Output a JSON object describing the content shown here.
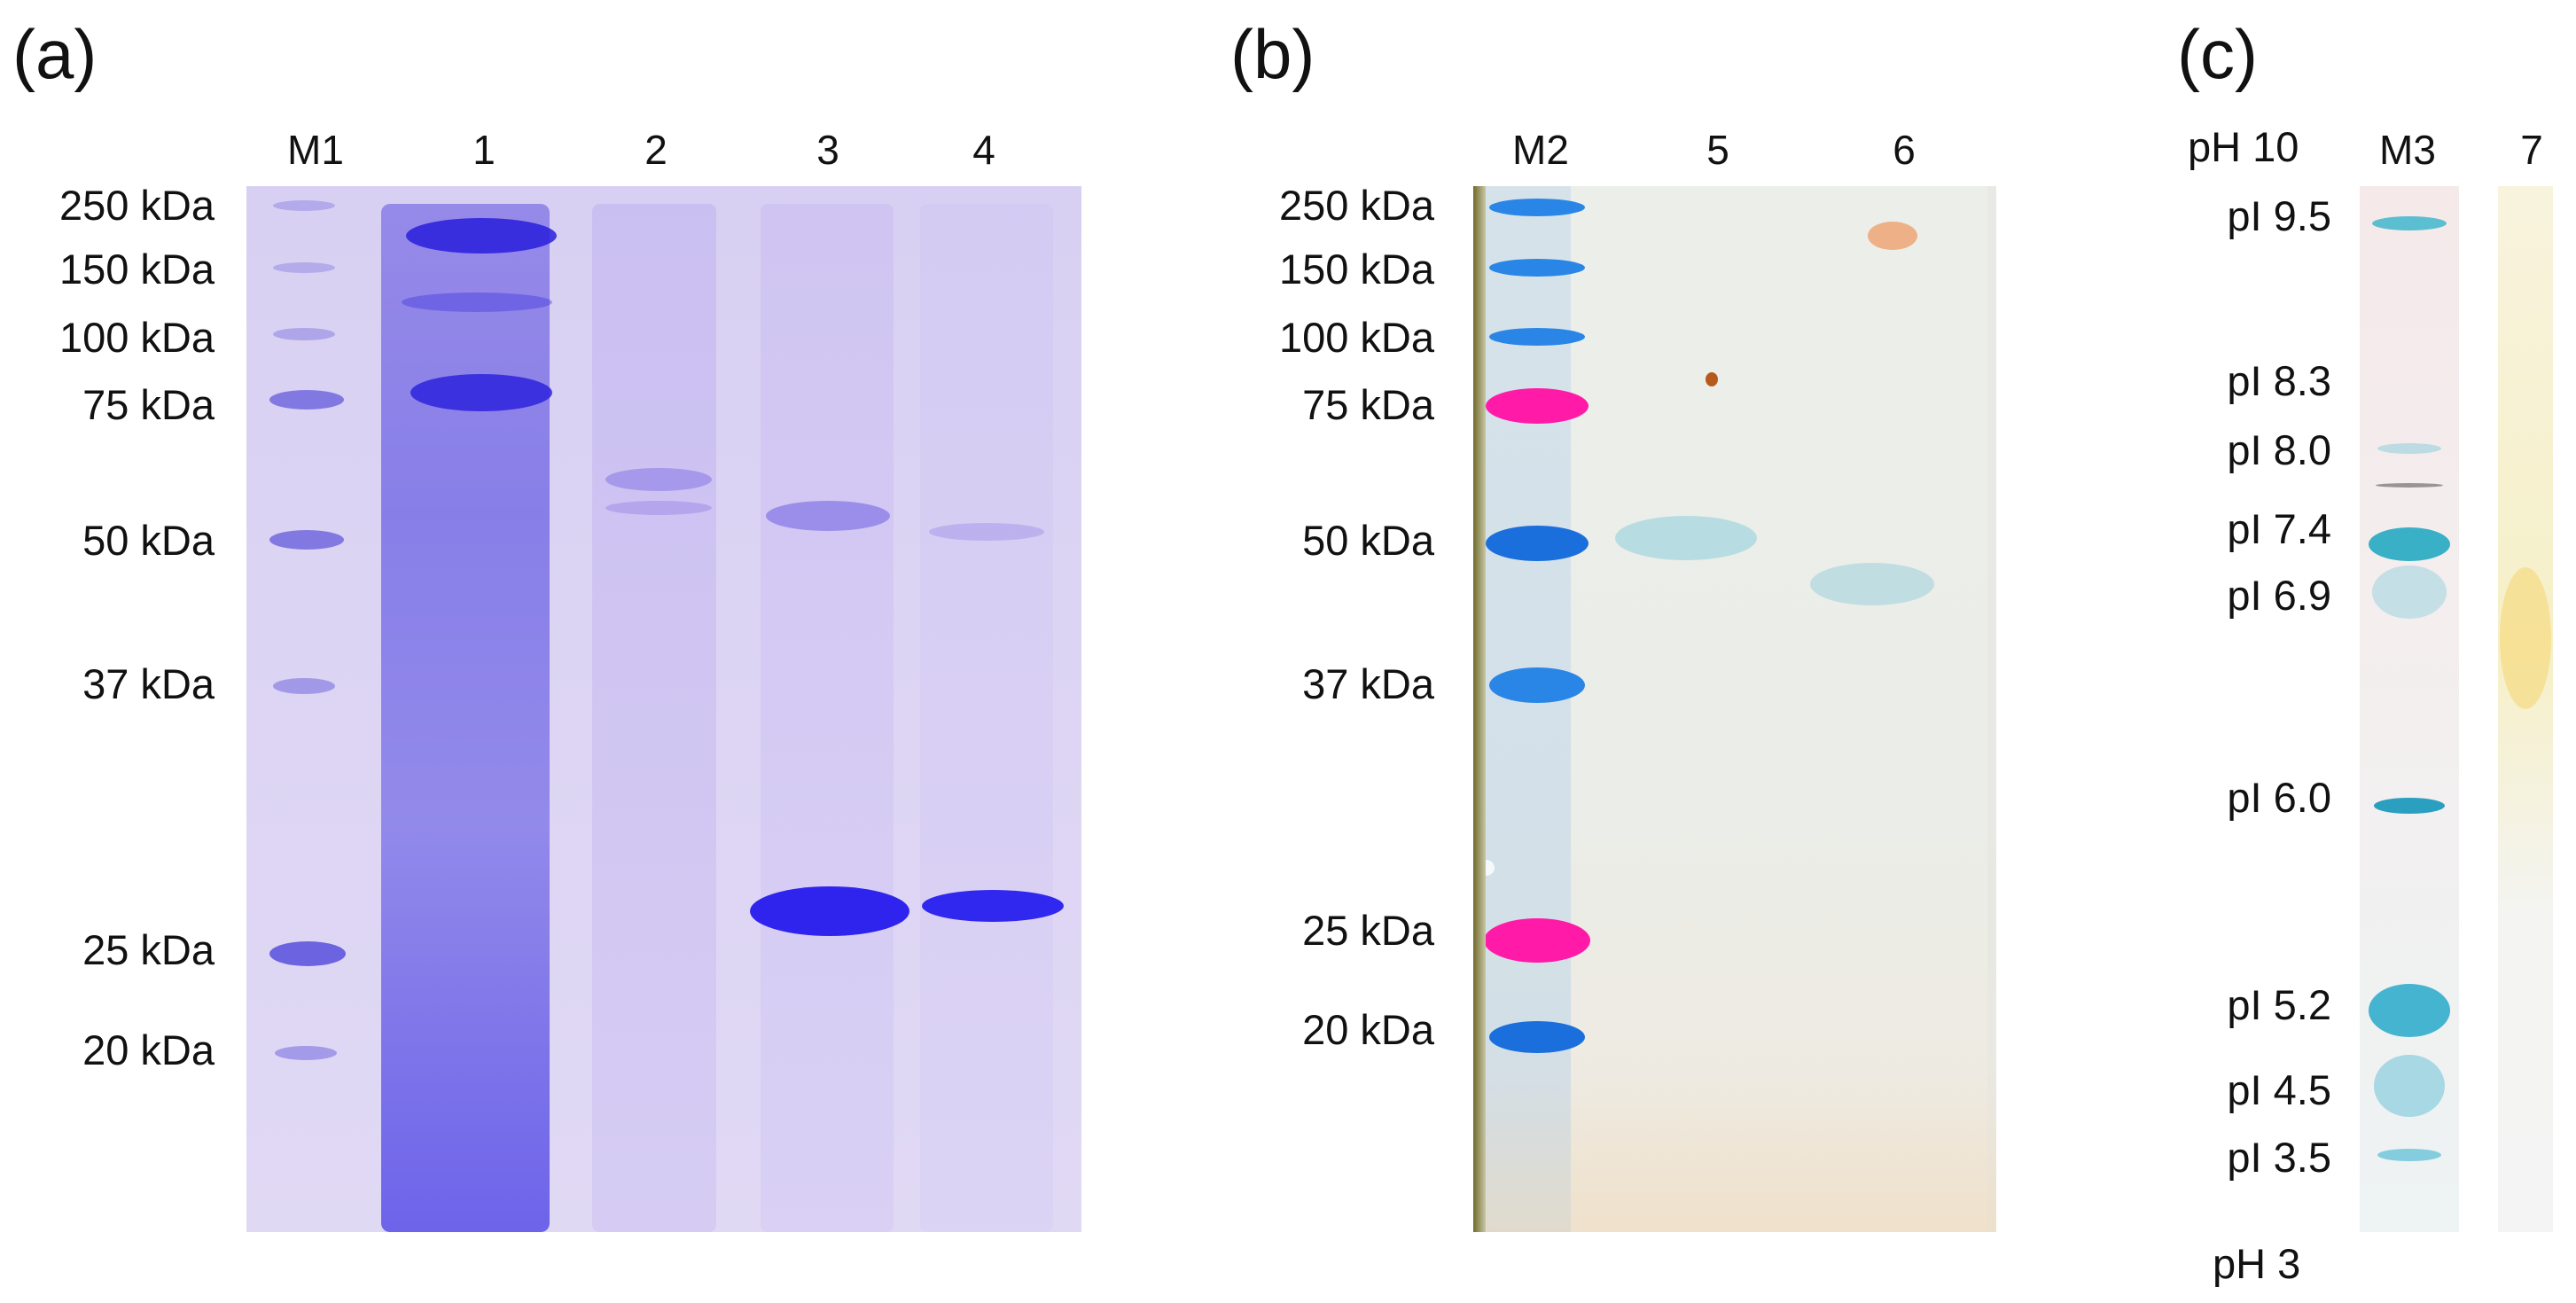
{
  "panels": {
    "a": {
      "letter": "(a)",
      "lane_labels": [
        "M1",
        "1",
        "2",
        "3",
        "4"
      ],
      "marker_labels": [
        "250 kDa",
        "150 kDa",
        "100 kDa",
        "75 kDa",
        "50 kDa",
        "37 kDa",
        "25 kDa",
        "20 kDa"
      ]
    },
    "b": {
      "letter": "(b)",
      "lane_labels": [
        "M2",
        "5",
        "6"
      ],
      "marker_labels": [
        "250 kDa",
        "150 kDa",
        "100 kDa",
        "75 kDa",
        "50 kDa",
        "37 kDa",
        "25 kDa",
        "20 kDa"
      ]
    },
    "c": {
      "letter": "(c)",
      "top_label": "pH 10",
      "bottom_label": "pH 3",
      "lane_labels": [
        "M3",
        "7"
      ],
      "pi_labels": [
        "pI 9.5",
        "pI 8.3",
        "pI 8.0",
        "pI 7.4",
        "pI 6.9",
        "pI 6.0",
        "pI 5.2",
        "pI 4.5",
        "pI 3.5"
      ]
    }
  },
  "colors": {
    "coomassie_band": "#3a2ee6",
    "coomassie_background": "#dcd4f3",
    "blot_blue": "#1f7fe0",
    "blot_pink": "#ff1aa8",
    "ief_cyan": "#27b3c8",
    "ief_yellow": "#f4d873"
  }
}
